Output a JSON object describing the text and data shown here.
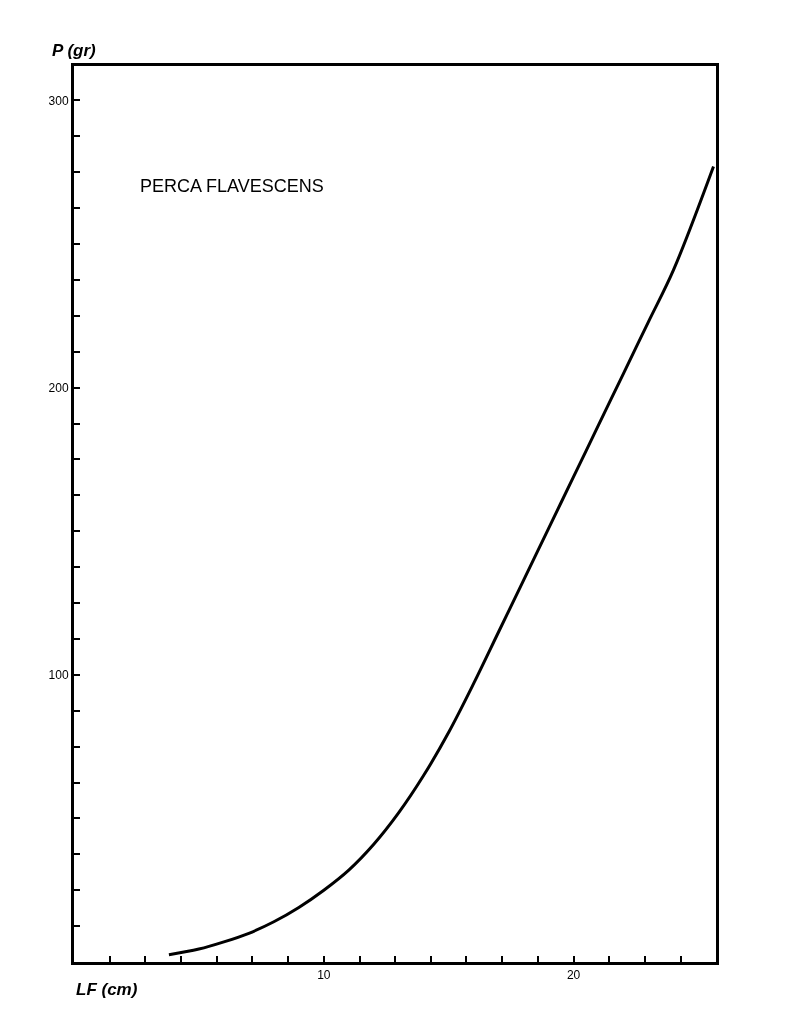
{
  "chart_data": {
    "type": "line",
    "title": "PERCA FLAVESCENS",
    "xlabel": "LF (cm)",
    "ylabel": "P (gr)",
    "x": [
      3.8,
      5,
      6,
      7,
      8,
      9,
      10,
      11,
      12,
      13,
      14,
      15,
      16,
      17,
      18,
      19,
      20,
      21,
      22,
      23,
      24,
      25.6
    ],
    "series": [
      {
        "color": "#000000",
        "values": [
          2.5,
          4.5,
          7,
          10,
          14,
          19,
          25,
          32,
          41,
          52,
          65,
          80,
          97,
          115,
          133,
          151,
          169,
          187,
          205,
          223,
          241,
          277
        ]
      }
    ],
    "xlim": [
      0,
      25.7
    ],
    "ylim": [
      0,
      312
    ],
    "xticks": [
      {
        "value": 1.43,
        "label": null
      },
      {
        "value": 2.86,
        "label": null
      },
      {
        "value": 4.29,
        "label": null
      },
      {
        "value": 5.71,
        "label": null
      },
      {
        "value": 7.14,
        "label": null
      },
      {
        "value": 8.57,
        "label": null
      },
      10,
      {
        "value": 11.43,
        "label": null
      },
      {
        "value": 12.86,
        "label": null
      },
      {
        "value": 14.29,
        "label": null
      },
      {
        "value": 15.71,
        "label": null
      },
      {
        "value": 17.14,
        "label": null
      },
      {
        "value": 18.57,
        "label": null
      },
      20,
      {
        "value": 21.43,
        "label": null
      },
      {
        "value": 22.86,
        "label": null
      },
      {
        "value": 24.29,
        "label": null
      }
    ],
    "yticks": [
      {
        "value": 12.5,
        "label": null
      },
      {
        "value": 25,
        "label": null
      },
      {
        "value": 37.5,
        "label": null
      },
      {
        "value": 50,
        "label": null
      },
      {
        "value": 62.5,
        "label": null
      },
      {
        "value": 75,
        "label": null
      },
      {
        "value": 87.5,
        "label": null
      },
      100,
      {
        "value": 112.5,
        "label": null
      },
      {
        "value": 125,
        "label": null
      },
      {
        "value": 137.5,
        "label": null
      },
      {
        "value": 150,
        "label": null
      },
      {
        "value": 162.5,
        "label": null
      },
      {
        "value": 175,
        "label": null
      },
      {
        "value": 187.5,
        "label": null
      },
      200,
      {
        "value": 212.5,
        "label": null
      },
      {
        "value": 225,
        "label": null
      },
      {
        "value": 237.5,
        "label": null
      },
      {
        "value": 250,
        "label": null
      },
      {
        "value": 262.5,
        "label": null
      },
      {
        "value": 275,
        "label": null
      },
      {
        "value": 287.5,
        "label": null
      },
      300
    ],
    "legend": false,
    "marker": "none",
    "line_style": "solid"
  }
}
